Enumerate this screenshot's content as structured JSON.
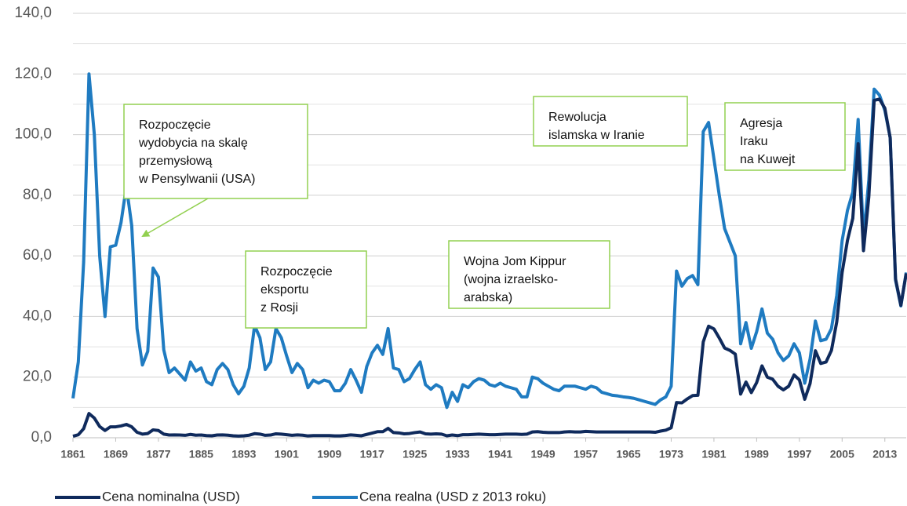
{
  "chart_data": {
    "type": "line",
    "x": [
      1861,
      1862,
      1863,
      1864,
      1865,
      1866,
      1867,
      1868,
      1869,
      1870,
      1871,
      1872,
      1873,
      1874,
      1875,
      1876,
      1877,
      1878,
      1879,
      1880,
      1881,
      1882,
      1883,
      1884,
      1885,
      1886,
      1887,
      1888,
      1889,
      1890,
      1891,
      1892,
      1893,
      1894,
      1895,
      1896,
      1897,
      1898,
      1899,
      1900,
      1901,
      1902,
      1903,
      1904,
      1905,
      1906,
      1907,
      1908,
      1909,
      1910,
      1911,
      1912,
      1913,
      1914,
      1915,
      1916,
      1917,
      1918,
      1919,
      1920,
      1921,
      1922,
      1923,
      1924,
      1925,
      1926,
      1927,
      1928,
      1929,
      1930,
      1931,
      1932,
      1933,
      1934,
      1935,
      1936,
      1937,
      1938,
      1939,
      1940,
      1941,
      1942,
      1943,
      1944,
      1945,
      1946,
      1947,
      1948,
      1949,
      1950,
      1951,
      1952,
      1953,
      1954,
      1955,
      1956,
      1957,
      1958,
      1959,
      1960,
      1961,
      1962,
      1963,
      1964,
      1965,
      1966,
      1967,
      1968,
      1969,
      1970,
      1971,
      1972,
      1973,
      1974,
      1975,
      1976,
      1977,
      1978,
      1979,
      1980,
      1981,
      1982,
      1983,
      1984,
      1985,
      1986,
      1987,
      1988,
      1989,
      1990,
      1991,
      1992,
      1993,
      1994,
      1995,
      1996,
      1997,
      1998,
      1999,
      2000,
      2001,
      2002,
      2003,
      2004,
      2005,
      2006,
      2007,
      2008,
      2009,
      2010,
      2011,
      2012,
      2013,
      2014,
      2015,
      2016,
      2017
    ],
    "series": [
      {
        "name": "Cena nominalna (USD)",
        "color": "#0f2a5c",
        "values": [
          0.5,
          1,
          3,
          8,
          6.5,
          3.7,
          2.4,
          3.6,
          3.6,
          3.9,
          4.4,
          3.6,
          1.8,
          1.2,
          1.4,
          2.6,
          2.4,
          1.2,
          0.9,
          0.95,
          0.9,
          0.8,
          1.1,
          0.85,
          0.9,
          0.7,
          0.65,
          0.9,
          0.95,
          0.85,
          0.65,
          0.55,
          0.65,
          0.85,
          1.35,
          1.2,
          0.8,
          0.9,
          1.3,
          1.2,
          1,
          0.8,
          0.95,
          0.85,
          0.6,
          0.7,
          0.7,
          0.7,
          0.7,
          0.6,
          0.6,
          0.75,
          0.95,
          0.8,
          0.65,
          1.1,
          1.55,
          2,
          2,
          3.1,
          1.7,
          1.6,
          1.3,
          1.4,
          1.7,
          1.9,
          1.3,
          1.2,
          1.3,
          1.2,
          0.65,
          0.9,
          0.7,
          1,
          1,
          1.1,
          1.2,
          1.1,
          1,
          1,
          1.1,
          1.2,
          1.2,
          1.2,
          1.1,
          1.2,
          1.9,
          2,
          1.8,
          1.7,
          1.7,
          1.7,
          1.9,
          2,
          1.9,
          1.9,
          2.1,
          2,
          1.9,
          1.9,
          1.9,
          1.9,
          1.9,
          1.9,
          1.9,
          1.9,
          1.9,
          1.9,
          1.9,
          1.8,
          2.2,
          2.5,
          3.3,
          11.6,
          11.5,
          12.8,
          13.9,
          14,
          31.6,
          36.8,
          35.9,
          32.9,
          29.6,
          28.8,
          27.6,
          14.4,
          18.4,
          14.9,
          18.2,
          23.7,
          20,
          19.3,
          17,
          15.8,
          17,
          20.7,
          19.1,
          12.7,
          17.9,
          28.7,
          24.5,
          25,
          28.8,
          38.3,
          54.5,
          65.1,
          72.4,
          97,
          61.7,
          79.5,
          111.3,
          111.7,
          108.7,
          98.9,
          52.4,
          43.7,
          54.2
        ]
      },
      {
        "name": "Cena realna (USD z 2013 roku)",
        "color": "#1f7bc1",
        "values": [
          13,
          25,
          58,
          120,
          100,
          60,
          40,
          63,
          63.5,
          71,
          83,
          70,
          36,
          24,
          28.5,
          56,
          53,
          29,
          21.5,
          23,
          21,
          19,
          25,
          22,
          23,
          18.5,
          17.5,
          22.5,
          24.5,
          22.5,
          17.5,
          14.5,
          17,
          23,
          37,
          33,
          22.5,
          25,
          36,
          33,
          27,
          21.5,
          24.5,
          22.5,
          16.5,
          19,
          18,
          19,
          18.5,
          15.5,
          15.5,
          18,
          22.5,
          19,
          15,
          23.5,
          28,
          30.5,
          27.5,
          36,
          23,
          22.5,
          18.5,
          19.5,
          22.5,
          25,
          17.5,
          16,
          17.5,
          16.5,
          10,
          15,
          12,
          17.5,
          16.5,
          18.5,
          19.5,
          19,
          17.5,
          17,
          18,
          17,
          16.5,
          16,
          13.5,
          13.5,
          20,
          19.5,
          18,
          17,
          16,
          15.5,
          17,
          17,
          17,
          16.5,
          16,
          17,
          16.5,
          15,
          14.5,
          14,
          13.8,
          13.5,
          13.3,
          13,
          12.5,
          12,
          11.5,
          11,
          12.5,
          13.5,
          17,
          55,
          50,
          52.5,
          53.5,
          50.5,
          101,
          104,
          92,
          80,
          69,
          64.5,
          60,
          31,
          38,
          29.5,
          35,
          42.5,
          34.5,
          32.5,
          28,
          25.5,
          27,
          31,
          28,
          18,
          26,
          38.5,
          32,
          32.5,
          36,
          47,
          65,
          75,
          81,
          105,
          66,
          85,
          115,
          113,
          108,
          99,
          52,
          43.5,
          54.5
        ]
      }
    ],
    "xlim": [
      1861,
      2017
    ],
    "xticks": [
      1861,
      1869,
      1877,
      1885,
      1893,
      1901,
      1909,
      1917,
      1925,
      1933,
      1941,
      1949,
      1957,
      1965,
      1973,
      1981,
      1989,
      1997,
      2005,
      2013
    ],
    "ylim": [
      0,
      140
    ],
    "yticks": [
      {
        "value": 0,
        "label": "0,0"
      },
      {
        "value": 20,
        "label": "20,0"
      },
      {
        "value": 40,
        "label": "40,0"
      },
      {
        "value": 60,
        "label": "60,0"
      },
      {
        "value": 80,
        "label": "80,0"
      },
      {
        "value": 100,
        "label": "100,0"
      },
      {
        "value": 120,
        "label": "120,0"
      },
      {
        "value": 140,
        "label": "140,0"
      }
    ],
    "minor_yticks": [
      10,
      30,
      50,
      70,
      90,
      110,
      130
    ],
    "grid": true,
    "legend": "bottom",
    "annotations": [
      {
        "lines": [
          "Rozpoczęcie",
          "wydobycia na skalę",
          "przemysłową",
          "w Pensylwanii (USA)"
        ]
      },
      {
        "lines": [
          "Rozpoczęcie",
          "eksportu",
          "z Rosji"
        ]
      },
      {
        "lines": [
          "Wojna Jom Kippur",
          "(wojna izraelsko-",
          "arabska)"
        ]
      },
      {
        "lines": [
          "Rewolucja",
          "islamska w Iranie"
        ]
      },
      {
        "lines": [
          "Agresja",
          "Iraku",
          "na Kuwejt"
        ]
      }
    ]
  }
}
